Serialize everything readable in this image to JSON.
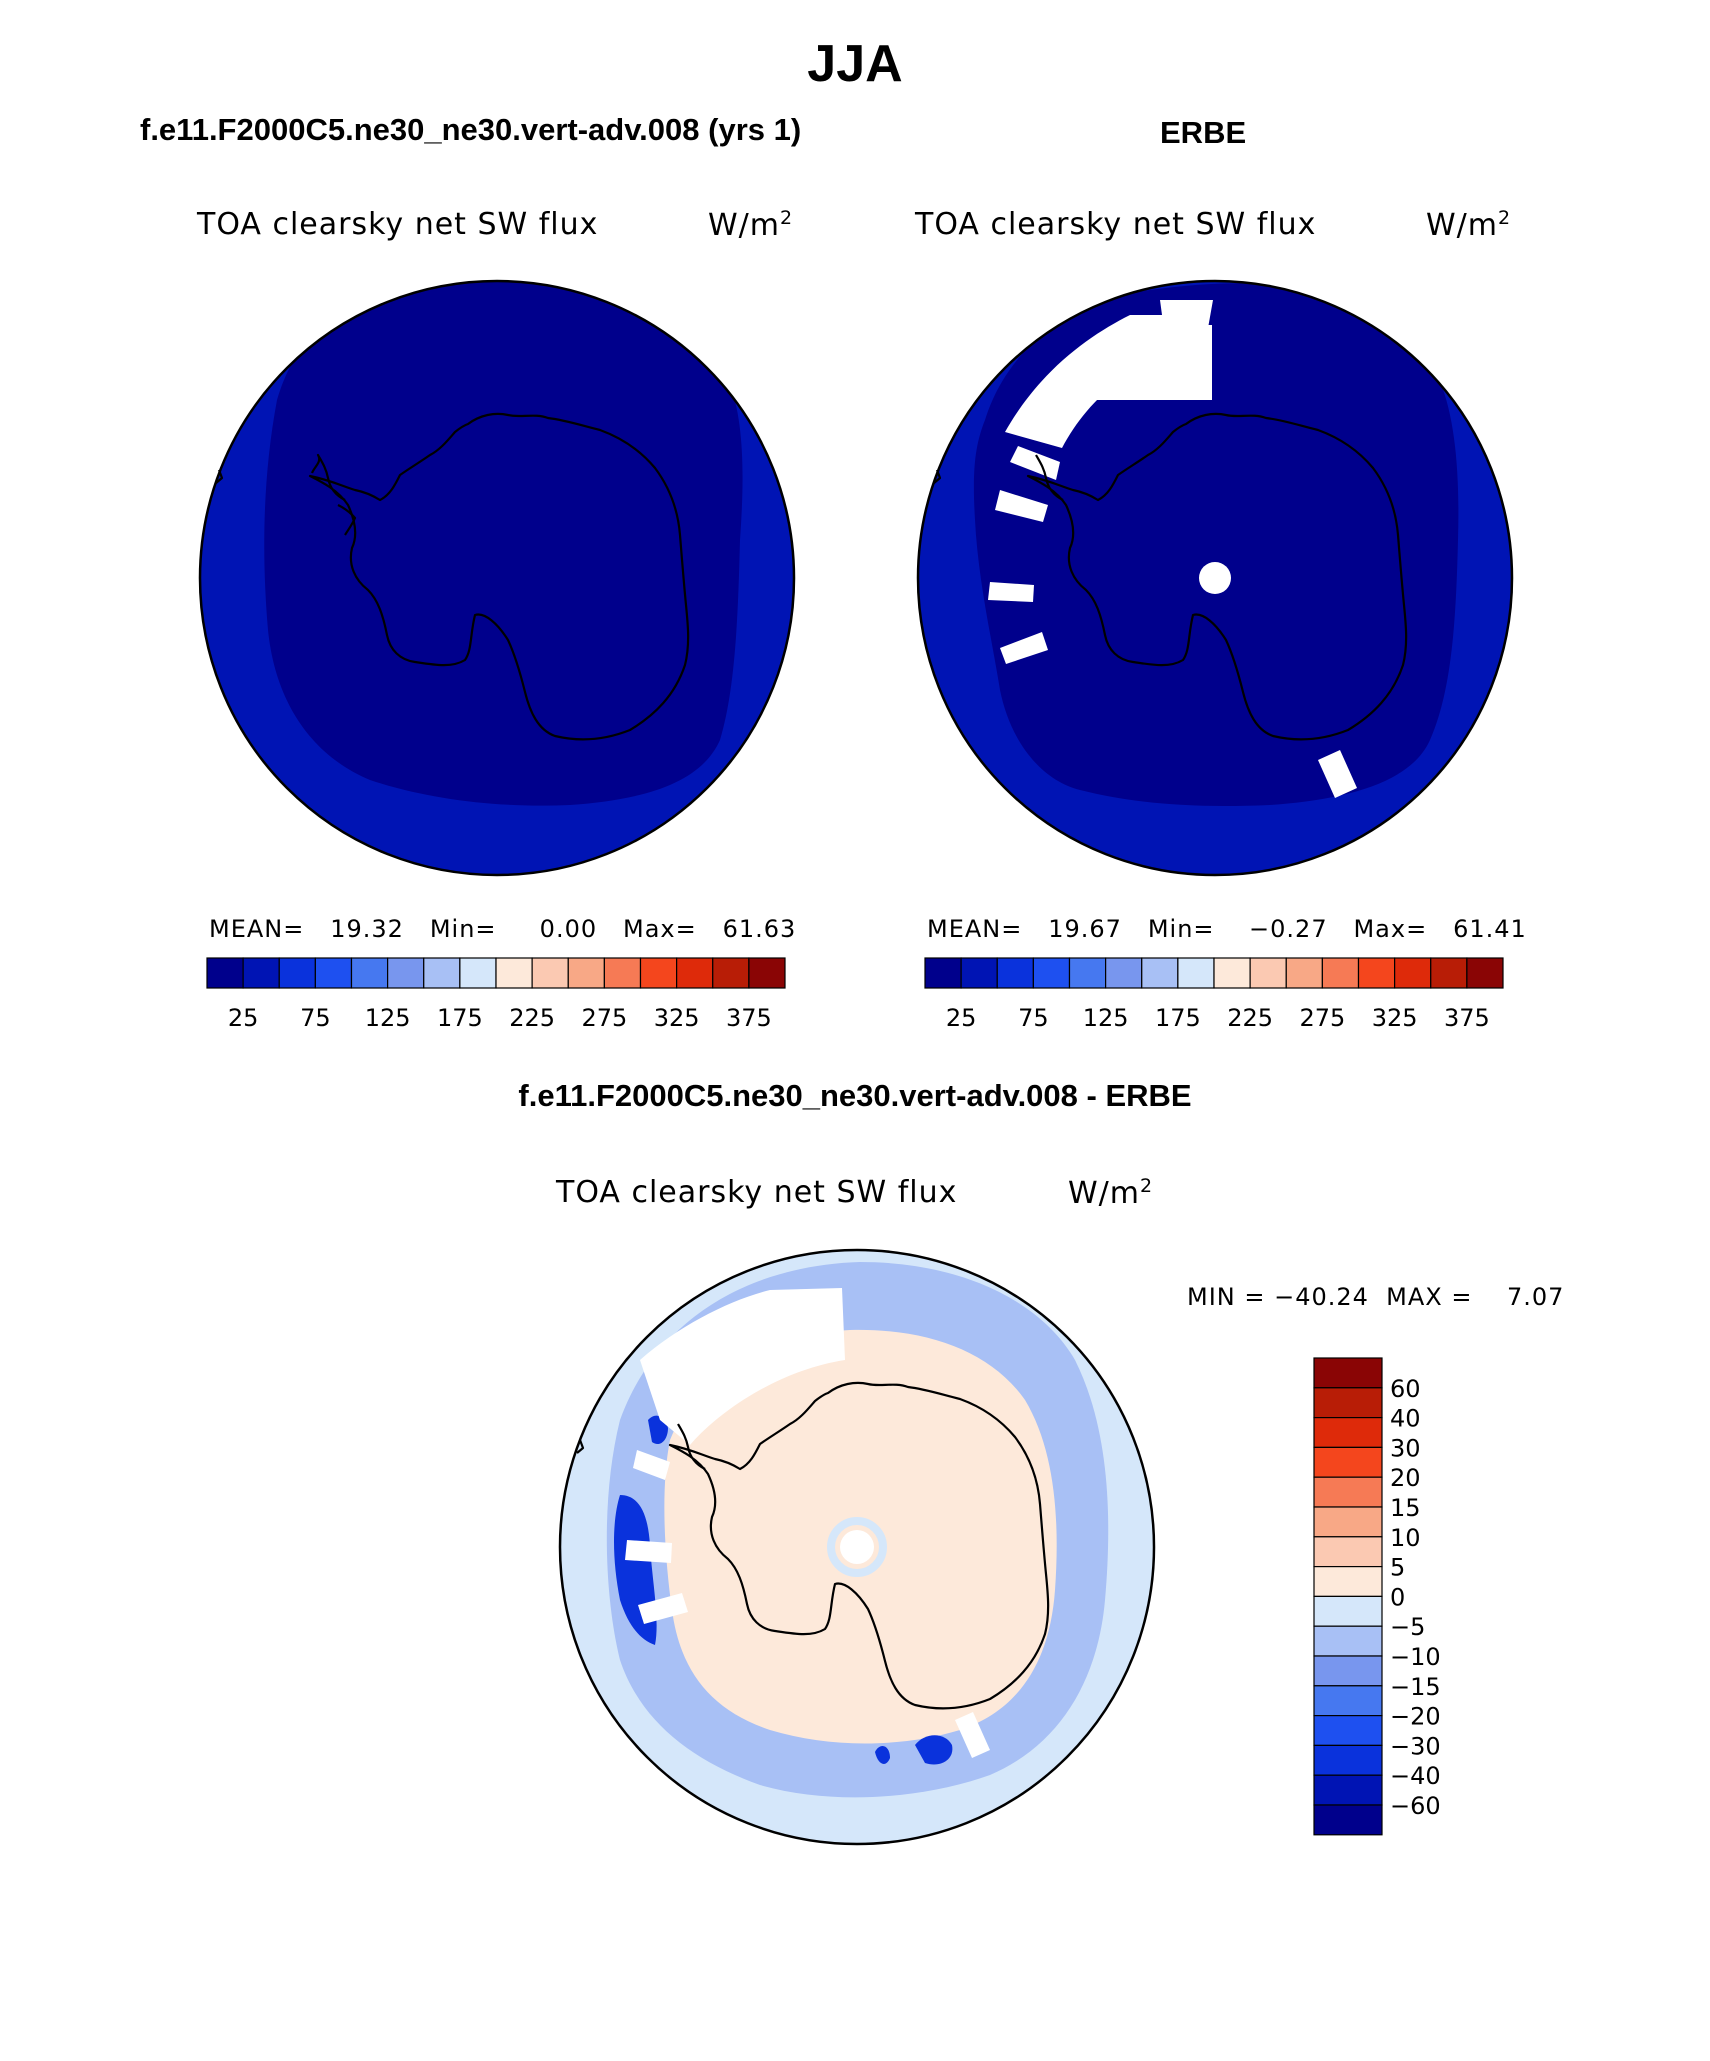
{
  "page": {
    "title": "JJA",
    "model_title": "f.e11.F2000C5.ne30_ne30.vert-adv.008 (yrs 1)",
    "obs_title": "ERBE",
    "diff_title": "f.e11.F2000C5.ne30_ne30.vert-adv.008 - ERBE"
  },
  "chart_data": [
    {
      "type": "heatmap",
      "projection": "polar-stereographic-south",
      "variable": "TOA clearsky net SW flux",
      "units": "W/m",
      "units_exp": "2",
      "stats": {
        "mean": "19.32",
        "min": "0.00",
        "max": "61.63"
      },
      "stats_text": "MEAN=   19.32   Min=     0.00   Max=   61.63",
      "levels": [
        0,
        25,
        50,
        75,
        100,
        125,
        150,
        175,
        200,
        225,
        250,
        275,
        300,
        325,
        350,
        375
      ],
      "tick_labels": [
        "25",
        "75",
        "125",
        "175",
        "225",
        "275",
        "325",
        "375"
      ],
      "colors": [
        "#00008c",
        "#0014b4",
        "#0a32dc",
        "#1e50f0",
        "#4678f0",
        "#7896ee",
        "#a8c0f5",
        "#d5e7fa",
        "#fde9da",
        "#fbc9b2",
        "#f8a886",
        "#f67a55",
        "#f4461d",
        "#de2a0a",
        "#b81d06",
        "#8a0505"
      ],
      "field_regions": [
        {
          "region": "ocean-outer-ring",
          "value": 37.5
        },
        {
          "region": "interior-antarctica-and-sea-ice",
          "value": 12.5
        }
      ]
    },
    {
      "type": "heatmap",
      "projection": "polar-stereographic-south",
      "variable": "TOA clearsky net SW flux",
      "units": "W/m",
      "units_exp": "2",
      "stats": {
        "mean": "19.67",
        "min": "−0.27",
        "max": "61.41"
      },
      "stats_text": "MEAN=   19.67   Min=    −0.27   Max=   61.41",
      "levels": [
        0,
        25,
        50,
        75,
        100,
        125,
        150,
        175,
        200,
        225,
        250,
        275,
        300,
        325,
        350,
        375
      ],
      "tick_labels": [
        "25",
        "75",
        "125",
        "175",
        "225",
        "275",
        "325",
        "375"
      ],
      "colors": [
        "#00008c",
        "#0014b4",
        "#0a32dc",
        "#1e50f0",
        "#4678f0",
        "#7896ee",
        "#a8c0f5",
        "#d5e7fa",
        "#fde9da",
        "#fbc9b2",
        "#f8a886",
        "#f67a55",
        "#f4461d",
        "#de2a0a",
        "#b81d06",
        "#8a0505"
      ],
      "field_regions": [
        {
          "region": "ocean-outer-ring",
          "value": 37.5
        },
        {
          "region": "interior-antarctica-and-sea-ice",
          "value": 12.5
        },
        {
          "region": "missing-data-sectors",
          "value": null
        }
      ]
    },
    {
      "type": "heatmap",
      "projection": "polar-stereographic-south",
      "variable": "TOA clearsky net SW flux",
      "units": "W/m",
      "units_exp": "2",
      "stats": {
        "min": "−40.24",
        "max": "7.07"
      },
      "stats_text": "MIN = −40.24  MAX =    7.07",
      "levels": [
        -60,
        -40,
        -30,
        -20,
        -15,
        -10,
        -5,
        0,
        5,
        10,
        15,
        20,
        30,
        40,
        60
      ],
      "tick_labels": [
        "60",
        "40",
        "30",
        "20",
        "15",
        "10",
        "5",
        "0",
        "−5",
        "−10",
        "−15",
        "−20",
        "−30",
        "−40",
        "−60"
      ],
      "colors": [
        "#8a0505",
        "#b81d06",
        "#de2a0a",
        "#f4461d",
        "#f67a55",
        "#f8a886",
        "#fbc9b2",
        "#fde9da",
        "#d5e7fa",
        "#a8c0f5",
        "#7896ee",
        "#4678f0",
        "#1e50f0",
        "#0a32dc",
        "#0014b4",
        "#00008c"
      ],
      "field_regions": [
        {
          "region": "antarctic-continent",
          "value": 2.5
        },
        {
          "region": "outer-ocean",
          "value": -2.5
        },
        {
          "region": "sea-ice-edge-ring",
          "value": -7.5
        },
        {
          "region": "weddell-sea-patches",
          "value": -35
        }
      ]
    }
  ]
}
